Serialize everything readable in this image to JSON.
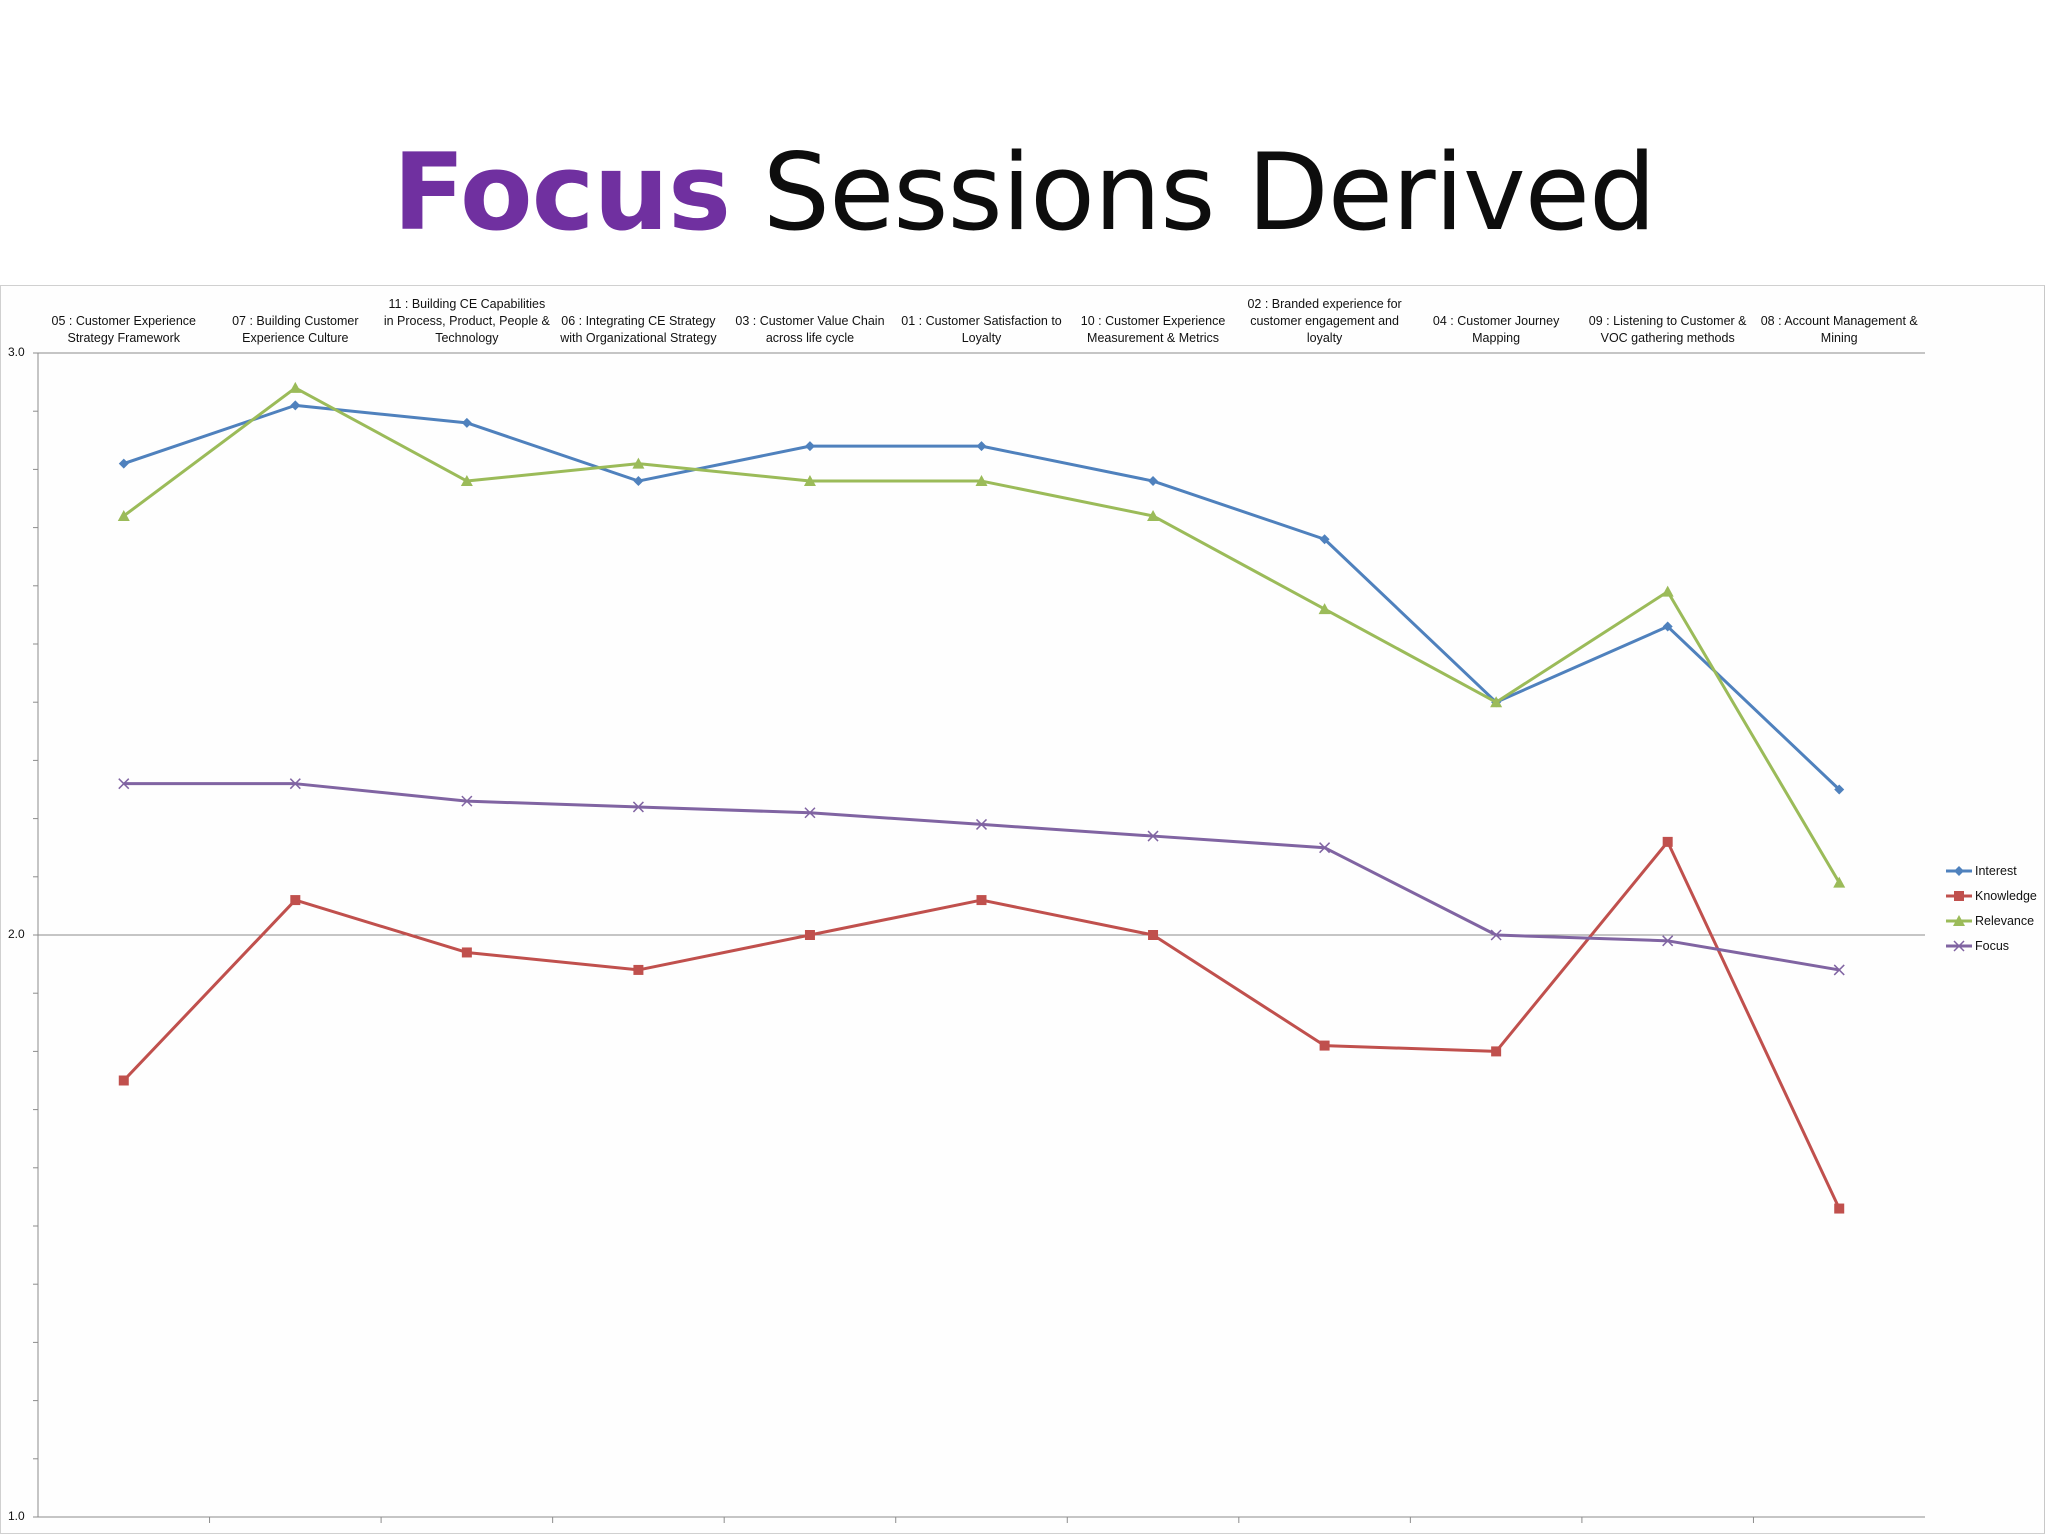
{
  "slide": {
    "title_accent": "Focus",
    "title_rest": "Sessions Derived"
  },
  "colors": {
    "accent": "#7030a0",
    "interest": "#4f81bd",
    "knowledge": "#c0504d",
    "relevance": "#9bbb59",
    "focus": "#8064a2"
  },
  "chart_data": {
    "type": "line",
    "categories": [
      "05 : Customer Experience Strategy Framework",
      "07 : Building Customer Experience Culture",
      "11 : Building CE Capabilities in Process, Product, People & Technology",
      "06 : Integrating CE Strategy with Organizational Strategy",
      "03 : Customer Value Chain across life cycle",
      "01 : Customer Satisfaction to Loyalty",
      "10 : Customer Experience Measurement & Metrics",
      "02 : Branded experience for customer engagement and loyalty",
      "04 : Customer Journey Mapping",
      "09 : Listening to Customer & VOC gathering methods",
      "08 : Account Management & Mining"
    ],
    "series": [
      {
        "name": "Interest",
        "marker": "diamond",
        "values": [
          2.81,
          2.91,
          2.88,
          2.78,
          2.84,
          2.84,
          2.78,
          2.68,
          2.4,
          2.53,
          2.25
        ]
      },
      {
        "name": "Knowledge",
        "marker": "square",
        "values": [
          1.75,
          2.06,
          1.97,
          1.94,
          2.0,
          2.06,
          2.0,
          1.81,
          1.8,
          2.16,
          1.53
        ]
      },
      {
        "name": "Relevance",
        "marker": "triangle",
        "values": [
          2.72,
          2.94,
          2.78,
          2.81,
          2.78,
          2.78,
          2.72,
          2.56,
          2.4,
          2.59,
          2.09
        ]
      },
      {
        "name": "Focus",
        "marker": "x",
        "values": [
          2.26,
          2.26,
          2.23,
          2.22,
          2.21,
          2.19,
          2.17,
          2.15,
          2.0,
          1.99,
          1.94
        ]
      }
    ],
    "ylim": [
      1.0,
      3.0
    ],
    "y_tick_labels": [
      "3.0",
      "2.0",
      "1.0"
    ],
    "y_minor_step": 0.1,
    "category_axis_position": "top",
    "legend_position": "right",
    "gridlines": "major only at 2.0",
    "title": "",
    "xlabel": "",
    "ylabel": ""
  }
}
